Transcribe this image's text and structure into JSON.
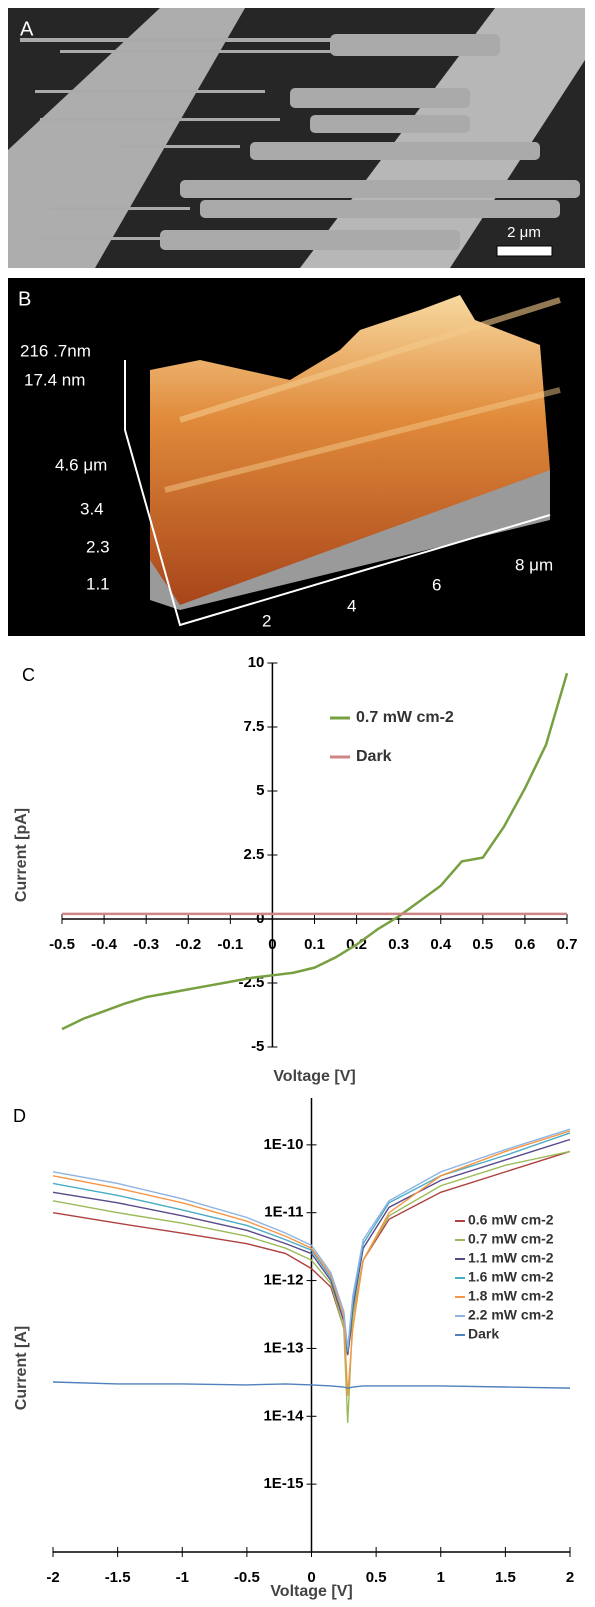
{
  "panels": {
    "a": {
      "label": "A",
      "scale_bar": "2 μm"
    },
    "b": {
      "label": "B",
      "z_labels": [
        "216 .7nm",
        "17.4 nm"
      ],
      "y_labels": [
        "4.6 μm",
        "3.4",
        "2.3",
        "1.1"
      ],
      "x_labels": [
        "2",
        "4",
        "6",
        "8 μm"
      ]
    }
  },
  "chart_data": [
    {
      "type": "line",
      "label": "C",
      "x_label": "Voltage [V]",
      "y_label": "Current [pA]",
      "x": [
        -0.5,
        -0.45,
        -0.4,
        -0.35,
        -0.3,
        -0.25,
        -0.2,
        -0.15,
        -0.1,
        -0.05,
        0,
        0.05,
        0.1,
        0.15,
        0.2,
        0.25,
        0.3,
        0.35,
        0.4,
        0.45,
        0.5,
        0.55,
        0.6,
        0.65,
        0.7
      ],
      "series": [
        {
          "name": "0.7 mW cm-2",
          "color": "#77a040",
          "values": [
            -4.3,
            -3.9,
            -3.6,
            -3.3,
            -3.05,
            -2.9,
            -2.75,
            -2.6,
            -2.45,
            -2.3,
            -2.2,
            -2.1,
            -1.9,
            -1.5,
            -1.0,
            -0.4,
            0.1,
            0.7,
            1.3,
            2.25,
            2.4,
            3.6,
            5.1,
            6.8,
            9.6
          ]
        },
        {
          "name": "Dark",
          "color": "#d08585",
          "values": [
            0.2,
            0.2,
            0.2,
            0.2,
            0.2,
            0.2,
            0.2,
            0.2,
            0.2,
            0.2,
            0.2,
            0.2,
            0.2,
            0.2,
            0.2,
            0.2,
            0.2,
            0.2,
            0.2,
            0.2,
            0.2,
            0.2,
            0.2,
            0.2,
            0.2
          ]
        }
      ],
      "xlim": [
        -0.5,
        0.7
      ],
      "xticks": [
        -0.5,
        -0.4,
        -0.3,
        -0.2,
        -0.1,
        0,
        0.1,
        0.2,
        0.3,
        0.4,
        0.5,
        0.6,
        0.7
      ],
      "ylim": [
        -5,
        10
      ],
      "yticks": [
        -5,
        -2.5,
        0,
        2.5,
        5,
        7.5,
        10
      ],
      "log_y": false,
      "grid": false,
      "legend_position": "top-center"
    },
    {
      "type": "line",
      "label": "D",
      "x_label": "Voltage [V]",
      "y_label": "Current [A]",
      "x": [
        -2,
        -1.5,
        -1,
        -0.5,
        -0.2,
        0,
        0.15,
        0.25,
        0.28,
        0.32,
        0.4,
        0.6,
        1,
        1.5,
        2
      ],
      "series": [
        {
          "name": "0.6 mW cm-2",
          "color": "#b04040",
          "values": [
            1e-11,
            7e-12,
            5e-12,
            3.5e-12,
            2.5e-12,
            1.5e-12,
            8e-13,
            2e-13,
            8e-14,
            3e-13,
            2e-12,
            8e-12,
            2e-11,
            4e-11,
            8e-11
          ]
        },
        {
          "name": "0.7 mW cm-2",
          "color": "#9bbb59",
          "values": [
            1.5e-11,
            1e-11,
            7e-12,
            4.5e-12,
            3e-12,
            2e-12,
            9e-13,
            2e-13,
            8e-15,
            3e-13,
            2e-12,
            9e-12,
            2.5e-11,
            5e-11,
            8e-11
          ]
        },
        {
          "name": "1.1 mW cm-2",
          "color": "#5a4a8a",
          "values": [
            2e-11,
            1.4e-11,
            9e-12,
            5.5e-12,
            3.5e-12,
            2.5e-12,
            1e-12,
            2.5e-13,
            8e-14,
            4e-13,
            3e-12,
            1.2e-11,
            3e-11,
            6e-11,
            1.2e-10
          ]
        },
        {
          "name": "1.6 mW cm-2",
          "color": "#4bacc6",
          "values": [
            2.7e-11,
            1.8e-11,
            1.1e-11,
            6.5e-12,
            4e-12,
            2.8e-12,
            1.1e-12,
            3e-13,
            9e-14,
            5e-13,
            3.5e-12,
            1.4e-11,
            3.5e-11,
            7e-11,
            1.5e-10
          ]
        },
        {
          "name": "1.8 mW cm-2",
          "color": "#f79646",
          "values": [
            3.5e-11,
            2.3e-11,
            1.4e-11,
            7.5e-12,
            4.5e-12,
            3e-12,
            1.2e-12,
            3e-13,
            2e-14,
            2e-13,
            2e-12,
            1e-11,
            3.5e-11,
            8e-11,
            1.6e-10
          ]
        },
        {
          "name": "2.2 mW cm-2",
          "color": "#8db3e2",
          "values": [
            4e-11,
            2.7e-11,
            1.6e-11,
            8.5e-12,
            5e-12,
            3.3e-12,
            1.3e-12,
            3.5e-13,
            1e-13,
            6e-13,
            4e-12,
            1.5e-11,
            4e-11,
            8.5e-11,
            1.7e-10
          ]
        },
        {
          "name": "Dark",
          "color": "#4f81bd",
          "values": [
            3.2e-14,
            3e-14,
            3e-14,
            2.9e-14,
            3e-14,
            2.9e-14,
            2.8e-14,
            2.7e-14,
            2.6e-14,
            2.7e-14,
            2.8e-14,
            2.8e-14,
            2.8e-14,
            2.7e-14,
            2.6e-14
          ]
        }
      ],
      "xlim": [
        -2,
        2
      ],
      "xticks": [
        -2,
        -1.5,
        -1,
        -0.5,
        0,
        0.5,
        1,
        1.5,
        2
      ],
      "ylim": [
        1e-16,
        4e-10
      ],
      "yticks": [
        {
          "value": 1e-15,
          "label": "1E-15"
        },
        {
          "value": 1e-14,
          "label": "1E-14"
        },
        {
          "value": 1e-13,
          "label": "1E-13"
        },
        {
          "value": 1e-12,
          "label": "1E-12"
        },
        {
          "value": 1e-11,
          "label": "1E-11"
        },
        {
          "value": 1e-10,
          "label": "1E-10"
        }
      ],
      "log_y": true,
      "grid": false,
      "legend_position": "right"
    }
  ]
}
